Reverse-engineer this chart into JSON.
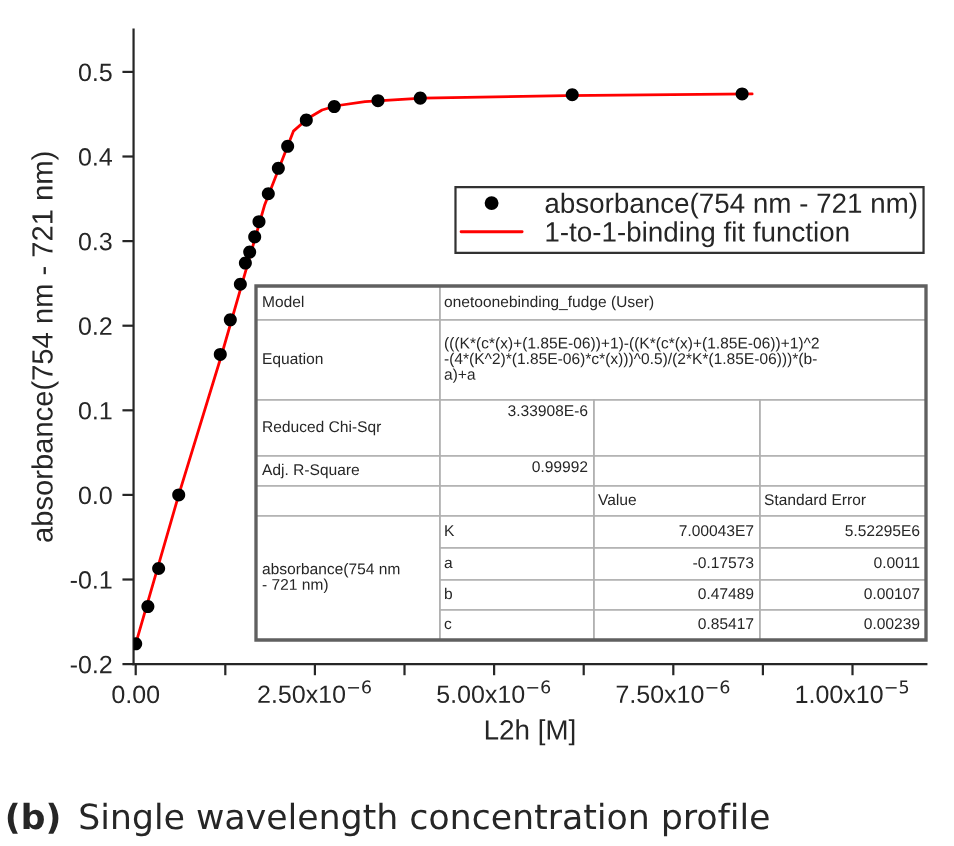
{
  "chart_data": {
    "type": "scatter",
    "xlabel": "L2h [M]",
    "ylabel": "absorbance(754 nm - 721 nm)",
    "xlim": [
      -3e-08,
      1.103e-05
    ],
    "ylim": [
      -0.2,
      0.55
    ],
    "xticks": [
      {
        "value": 0,
        "label": "0.00"
      },
      {
        "value": 1.25e-06,
        "label": null
      },
      {
        "value": 2.5e-06,
        "label": "2.50x10$^{−6}$"
      },
      {
        "value": 3.75e-06,
        "label": null
      },
      {
        "value": 5e-06,
        "label": "5.00x10$^{−6}$"
      },
      {
        "value": 6.25e-06,
        "label": null
      },
      {
        "value": 7.5e-06,
        "label": "7.50x10$^{−6}$"
      },
      {
        "value": 8.75e-06,
        "label": null
      },
      {
        "value": 1e-05,
        "label": "1.00x10$^{−5}$"
      }
    ],
    "yticks": [
      {
        "value": -0.2,
        "label": "-0.2"
      },
      {
        "value": -0.1,
        "label": "-0.1"
      },
      {
        "value": 0.0,
        "label": "0.0"
      },
      0.1,
      0.2,
      0.3,
      0.4,
      0.5
    ],
    "grid": false,
    "legend": "right",
    "series": [
      {
        "name": "absorbance(754 nm - 721 nm)",
        "color": "#000000",
        "marker": "circle",
        "x": [
          0.0,
          1.7e-07,
          3.2e-07,
          6e-07,
          1.18e-06,
          1.32e-06,
          1.46e-06,
          1.53e-06,
          1.59e-06,
          1.66e-06,
          1.72e-06,
          1.85e-06,
          1.99e-06,
          2.12e-06,
          2.38e-06,
          2.77e-06,
          3.38e-06,
          3.97e-06,
          6.09e-06,
          8.46e-06
        ],
        "values": [
          -0.176,
          -0.132,
          -0.087,
          0.0,
          0.166,
          0.207,
          0.249,
          0.274,
          0.287,
          0.305,
          0.323,
          0.356,
          0.386,
          0.412,
          0.443,
          0.459,
          0.466,
          0.469,
          0.473,
          0.474
        ]
      },
      {
        "name": "1-to-1-binding fit function",
        "type": "line",
        "color": "#ff0000",
        "marker": "none",
        "line_style": "solid",
        "x": [
          0.0,
          6e-07,
          1.2e-06,
          1.8e-06,
          2.2e-06,
          2.4e-06,
          2.6e-06,
          2.8e-06,
          3.2e-06,
          4e-06,
          6e-06,
          8.6e-06
        ],
        "values": [
          -0.176,
          0.0,
          0.166,
          0.343,
          0.43,
          0.445,
          0.455,
          0.46,
          0.465,
          0.469,
          0.472,
          0.474
        ]
      }
    ],
    "annotations": [
      "(b)",
      "Single wavelength concentration profile",
      "Model",
      "onetoonebinding_fudge (User)",
      "Equation",
      "(((K*(c*(x)+(1.85E-06))+1)-((K*(c*(x)+(1.85E-06))+1)^2\n-(4*(K^2)*(1.85E-06)*c*(x)))^0.5)/(2*K*(1.85E-06)))*(b-\na)+a",
      "Reduced Chi-Sqr",
      "3.33908E-6",
      "Adj. R-Square",
      "0.99992",
      "Value",
      "Standard Error",
      "absorbance(754 nm\n- 721 nm)",
      "K",
      "7.00043E7",
      "5.52295E6",
      "a",
      "-0.17573",
      "0.0011",
      "b",
      "0.47489",
      "0.00107",
      "c",
      "0.85417",
      "0.00239"
    ]
  }
}
